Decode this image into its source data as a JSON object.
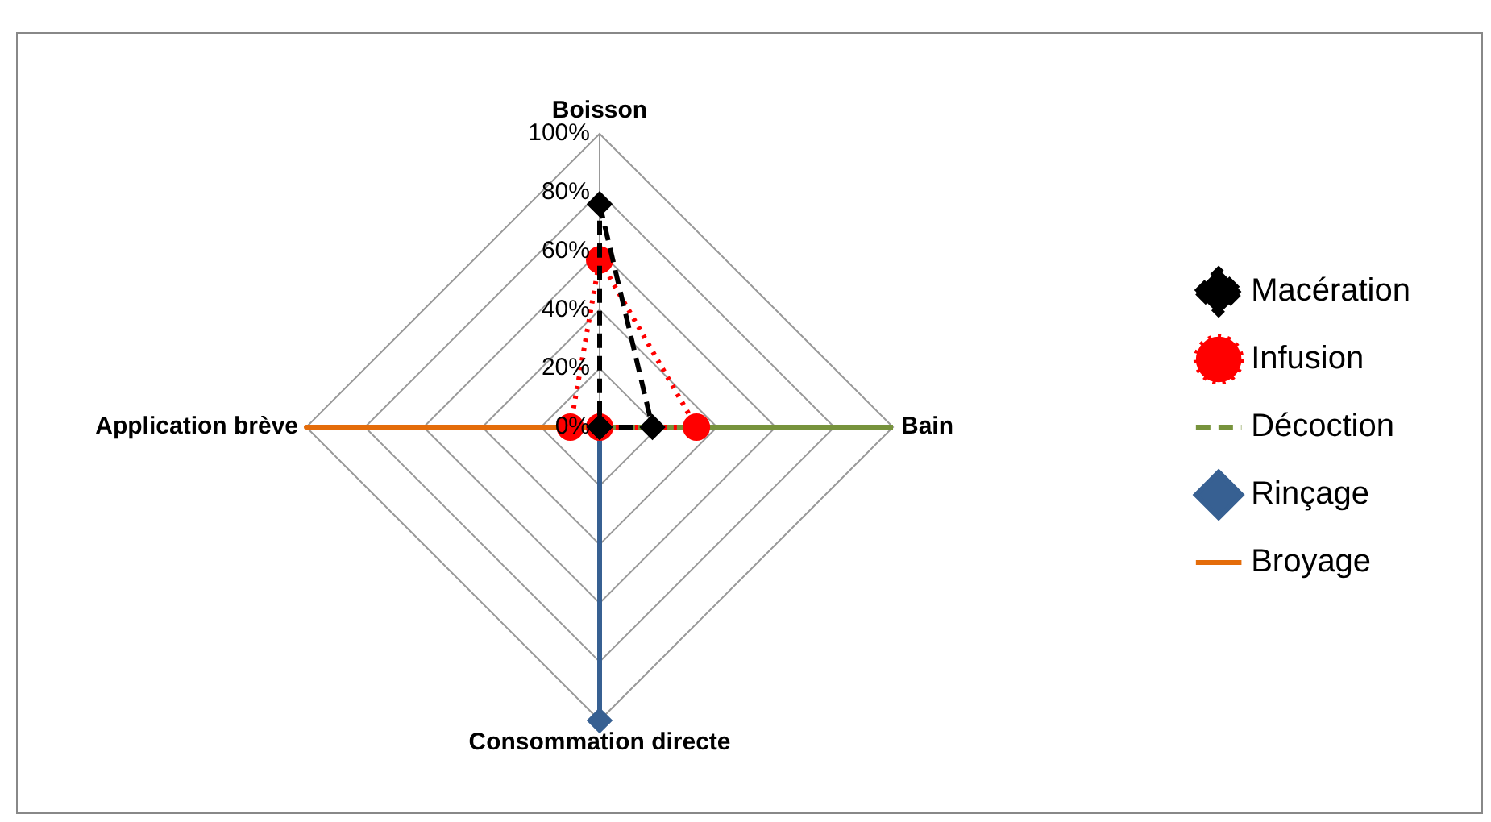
{
  "chart_data": {
    "type": "radar",
    "categories": [
      "Boisson",
      "Bain",
      "Consommation directe",
      "Application brève"
    ],
    "ylim": [
      0,
      100
    ],
    "yticks": [
      {
        "value": 0,
        "label": "0%"
      },
      {
        "value": 20,
        "label": "20%"
      },
      {
        "value": 40,
        "label": "40%"
      },
      {
        "value": 60,
        "label": "60%"
      },
      {
        "value": 80,
        "label": "80%"
      },
      {
        "value": 100,
        "label": "100%"
      }
    ],
    "grid": true,
    "legend": "right",
    "series": [
      {
        "name": "Macération",
        "color": "#000000",
        "values": [
          76,
          18,
          0,
          0
        ],
        "marker": "diamond",
        "line_style": "dashed"
      },
      {
        "name": "Infusion",
        "color": "#ff0000",
        "values": [
          57,
          33,
          0,
          10
        ],
        "marker": "circle",
        "line_style": "dotted"
      },
      {
        "name": "Décoction",
        "color": "#77933c",
        "values": [
          0,
          100,
          0,
          0
        ],
        "marker": "none",
        "line_style": "dashed"
      },
      {
        "name": "Rinçage",
        "color": "#376092",
        "values": [
          0,
          0,
          100,
          0
        ],
        "marker": "diamond",
        "line_style": "solid"
      },
      {
        "name": "Broyage",
        "color": "#e46c0a",
        "values": [
          0,
          0,
          0,
          100
        ],
        "marker": "none",
        "line_style": "solid"
      }
    ]
  }
}
